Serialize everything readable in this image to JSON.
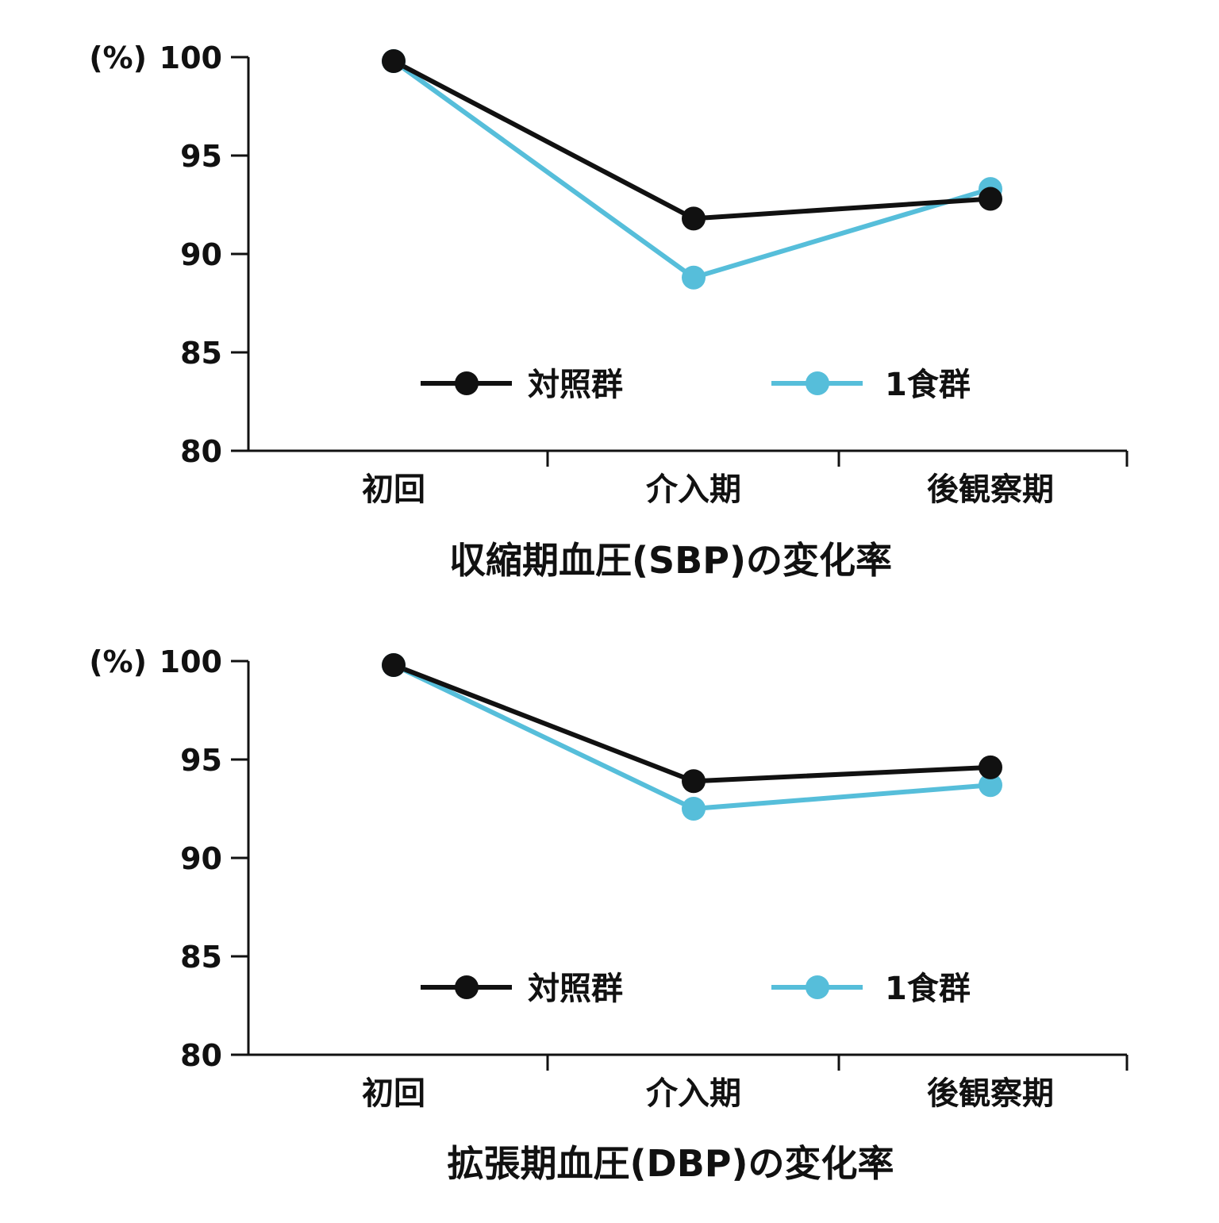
{
  "colors": {
    "control": "#111111",
    "one_meal": "#56BEDA",
    "axis": "#111111",
    "background": "#ffffff"
  },
  "chart_data": [
    {
      "type": "line",
      "title": "収縮期血圧(SBP)の変化率",
      "ylabel": "(%)",
      "xlabel": "",
      "categories": [
        "初回",
        "介入期",
        "後観察期"
      ],
      "ylim": [
        80,
        100
      ],
      "yticks": [
        80,
        85,
        90,
        95,
        100
      ],
      "grid": false,
      "legend": "inside-lower",
      "series": [
        {
          "name": "対照群",
          "color": "#111111",
          "values": [
            99.8,
            91.8,
            92.8
          ]
        },
        {
          "name": "1食群",
          "color": "#56BEDA",
          "values": [
            99.8,
            88.8,
            93.3
          ]
        }
      ]
    },
    {
      "type": "line",
      "title": "拡張期血圧(DBP)の変化率",
      "ylabel": "(%)",
      "xlabel": "",
      "categories": [
        "初回",
        "介入期",
        "後観察期"
      ],
      "ylim": [
        80,
        100
      ],
      "yticks": [
        80,
        85,
        90,
        95,
        100
      ],
      "grid": false,
      "legend": "inside-lower",
      "series": [
        {
          "name": "対照群",
          "color": "#111111",
          "values": [
            99.8,
            93.9,
            94.6
          ]
        },
        {
          "name": "1食群",
          "color": "#56BEDA",
          "values": [
            99.8,
            92.5,
            93.7
          ]
        }
      ]
    }
  ]
}
